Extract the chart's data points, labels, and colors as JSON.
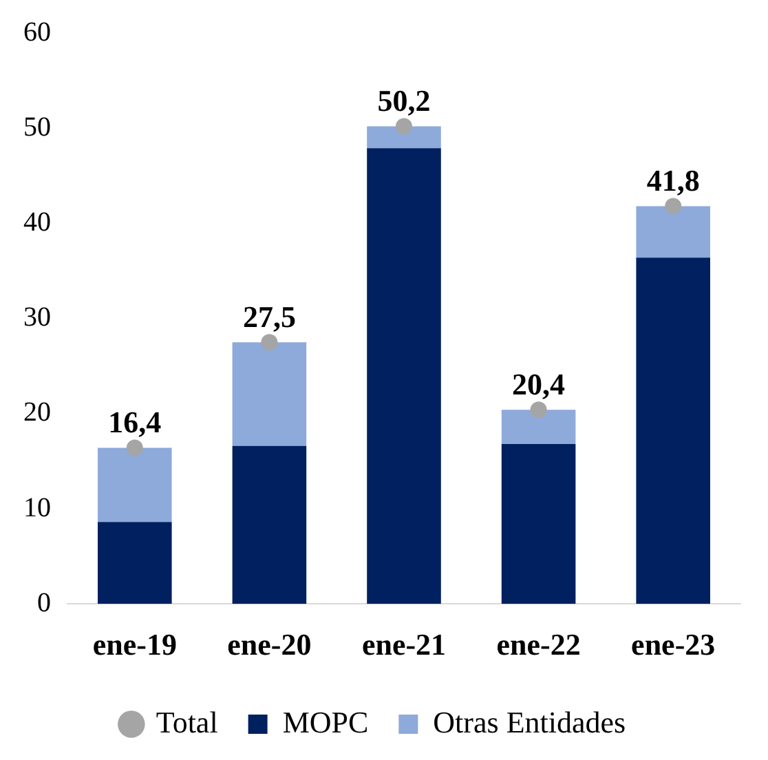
{
  "chart_data": {
    "type": "bar",
    "categories": [
      "ene-19",
      "ene-20",
      "ene-21",
      "ene-22",
      "ene-23"
    ],
    "stacked": true,
    "ylim": [
      0,
      60
    ],
    "yticks": [
      0,
      10,
      20,
      30,
      40,
      50,
      60
    ],
    "grid": false,
    "legend": "bottom",
    "series": [
      {
        "name": "MOPC",
        "color": "#002060",
        "values": [
          8.6,
          16.6,
          47.9,
          16.8,
          36.4
        ]
      },
      {
        "name": "Otras Entidades",
        "color": "#8eaadb",
        "values": [
          7.8,
          10.9,
          2.3,
          3.6,
          5.4
        ]
      },
      {
        "name": "Total",
        "type": "scatter",
        "color": "#a5a5a5",
        "marker": "circle",
        "x": [
          "ene-19",
          "ene-20",
          "ene-21",
          "ene-22",
          "ene-23"
        ],
        "values": [
          16.4,
          27.5,
          50.2,
          20.4,
          41.8
        ],
        "value_labels": [
          "16,4",
          "27,5",
          "50,2",
          "20,4",
          "41,8"
        ]
      }
    ]
  }
}
